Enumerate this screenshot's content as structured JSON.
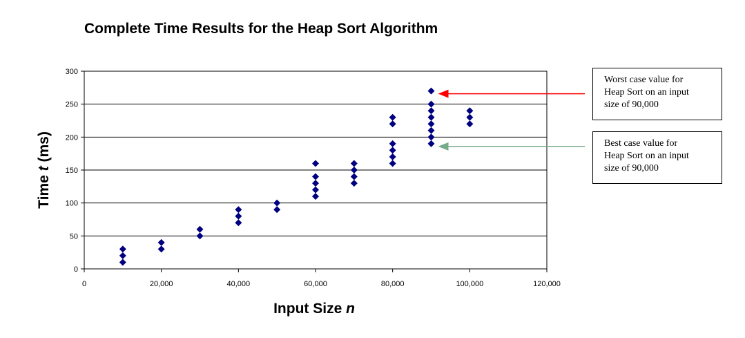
{
  "chart_data": {
    "type": "scatter",
    "title": "Complete Time Results for the Heap Sort Algorithm",
    "xlabel": "Input Size",
    "xlabel_var": "n",
    "ylabel": "Time",
    "ylabel_var": "t",
    "ylabel_unit": "(ms)",
    "xlim": [
      0,
      120000
    ],
    "ylim": [
      0,
      300
    ],
    "x_ticks": [
      "0",
      "20,000",
      "40,000",
      "60,000",
      "80,000",
      "100,000",
      "120,000"
    ],
    "y_ticks": [
      "0",
      "50",
      "100",
      "150",
      "200",
      "250",
      "300"
    ],
    "grid": "horizontal",
    "marker_color": "#000080",
    "points": [
      {
        "x": 10000,
        "y": 10
      },
      {
        "x": 10000,
        "y": 20
      },
      {
        "x": 10000,
        "y": 30
      },
      {
        "x": 20000,
        "y": 30
      },
      {
        "x": 20000,
        "y": 40
      },
      {
        "x": 30000,
        "y": 50
      },
      {
        "x": 30000,
        "y": 60
      },
      {
        "x": 40000,
        "y": 70
      },
      {
        "x": 40000,
        "y": 80
      },
      {
        "x": 40000,
        "y": 90
      },
      {
        "x": 50000,
        "y": 90
      },
      {
        "x": 50000,
        "y": 100
      },
      {
        "x": 60000,
        "y": 110
      },
      {
        "x": 60000,
        "y": 120
      },
      {
        "x": 60000,
        "y": 130
      },
      {
        "x": 60000,
        "y": 140
      },
      {
        "x": 60000,
        "y": 160
      },
      {
        "x": 70000,
        "y": 130
      },
      {
        "x": 70000,
        "y": 140
      },
      {
        "x": 70000,
        "y": 150
      },
      {
        "x": 70000,
        "y": 160
      },
      {
        "x": 80000,
        "y": 160
      },
      {
        "x": 80000,
        "y": 170
      },
      {
        "x": 80000,
        "y": 180
      },
      {
        "x": 80000,
        "y": 190
      },
      {
        "x": 80000,
        "y": 220
      },
      {
        "x": 80000,
        "y": 230
      },
      {
        "x": 90000,
        "y": 190
      },
      {
        "x": 90000,
        "y": 200
      },
      {
        "x": 90000,
        "y": 210
      },
      {
        "x": 90000,
        "y": 220
      },
      {
        "x": 90000,
        "y": 230
      },
      {
        "x": 90000,
        "y": 240
      },
      {
        "x": 90000,
        "y": 250
      },
      {
        "x": 90000,
        "y": 270
      },
      {
        "x": 100000,
        "y": 220
      },
      {
        "x": 100000,
        "y": 230
      },
      {
        "x": 100000,
        "y": 240
      }
    ],
    "annotations": [
      {
        "name": "worst-case",
        "lines": [
          "Worst case value for",
          "Heap Sort on an input",
          "size of 90,000"
        ],
        "arrow_color": "#ff0000",
        "target": {
          "x": 90000,
          "y": 270
        }
      },
      {
        "name": "best-case",
        "lines": [
          "Best case value for",
          "Heap Sort on an input",
          "size of 90,000"
        ],
        "arrow_color": "#77aa88",
        "target": {
          "x": 90000,
          "y": 190
        }
      }
    ]
  }
}
